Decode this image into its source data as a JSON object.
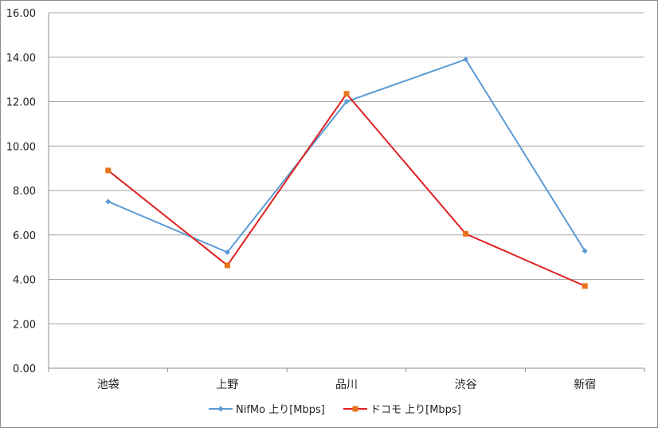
{
  "chart_data": {
    "type": "line",
    "categories": [
      "池袋",
      "上野",
      "品川",
      "渋谷",
      "新宿"
    ],
    "ylim": [
      0,
      16
    ],
    "yticks": [
      "0.00",
      "2.00",
      "4.00",
      "6.00",
      "8.00",
      "10.00",
      "12.00",
      "14.00",
      "16.00"
    ],
    "grid": true,
    "legend": "bottom",
    "series": [
      {
        "name": "NifMo 上り[Mbps]",
        "values": [
          7.5,
          5.22,
          12.0,
          13.9,
          5.28
        ],
        "color": "#5b9bd5",
        "marker": "diamond"
      },
      {
        "name": "ドコモ 上り[Mbps]",
        "values": [
          8.9,
          4.63,
          12.35,
          6.05,
          3.7
        ],
        "color": "#e8731d",
        "line_color": "#e02020",
        "marker": "square"
      }
    ]
  }
}
